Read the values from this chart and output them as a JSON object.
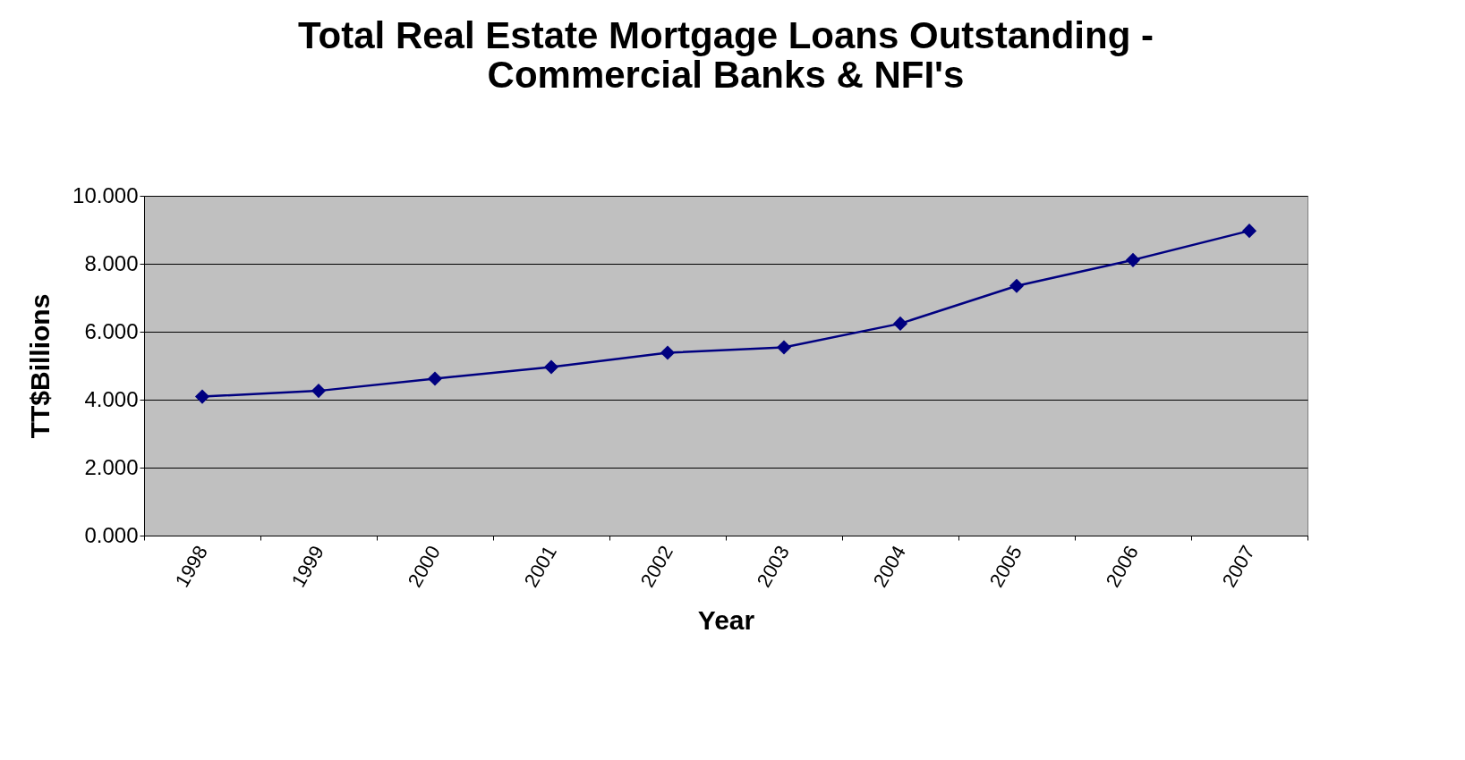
{
  "chart_data": {
    "type": "line",
    "title": "Total Real Estate Mortgage Loans Outstanding - Commercial Banks & NFI's",
    "xlabel": "Year",
    "ylabel": "TT$Billions",
    "categories": [
      "1998",
      "1999",
      "2000",
      "2001",
      "2002",
      "2003",
      "2004",
      "2005",
      "2006",
      "2007"
    ],
    "series": [
      {
        "color": "#000080",
        "values": [
          4.09,
          4.26,
          4.62,
          4.96,
          5.38,
          5.54,
          6.24,
          7.35,
          8.11,
          8.97
        ]
      }
    ],
    "ylim": [
      0,
      10
    ],
    "yticks": [
      {
        "value": 0,
        "label": "0.000"
      },
      {
        "value": 2,
        "label": "2.000"
      },
      {
        "value": 4,
        "label": "4.000"
      },
      {
        "value": 6,
        "label": "6.000"
      },
      {
        "value": 8,
        "label": "8.000"
      },
      {
        "value": 10,
        "label": "10.000"
      }
    ],
    "grid": "y",
    "marker": "diamond",
    "line_style": "solid"
  }
}
